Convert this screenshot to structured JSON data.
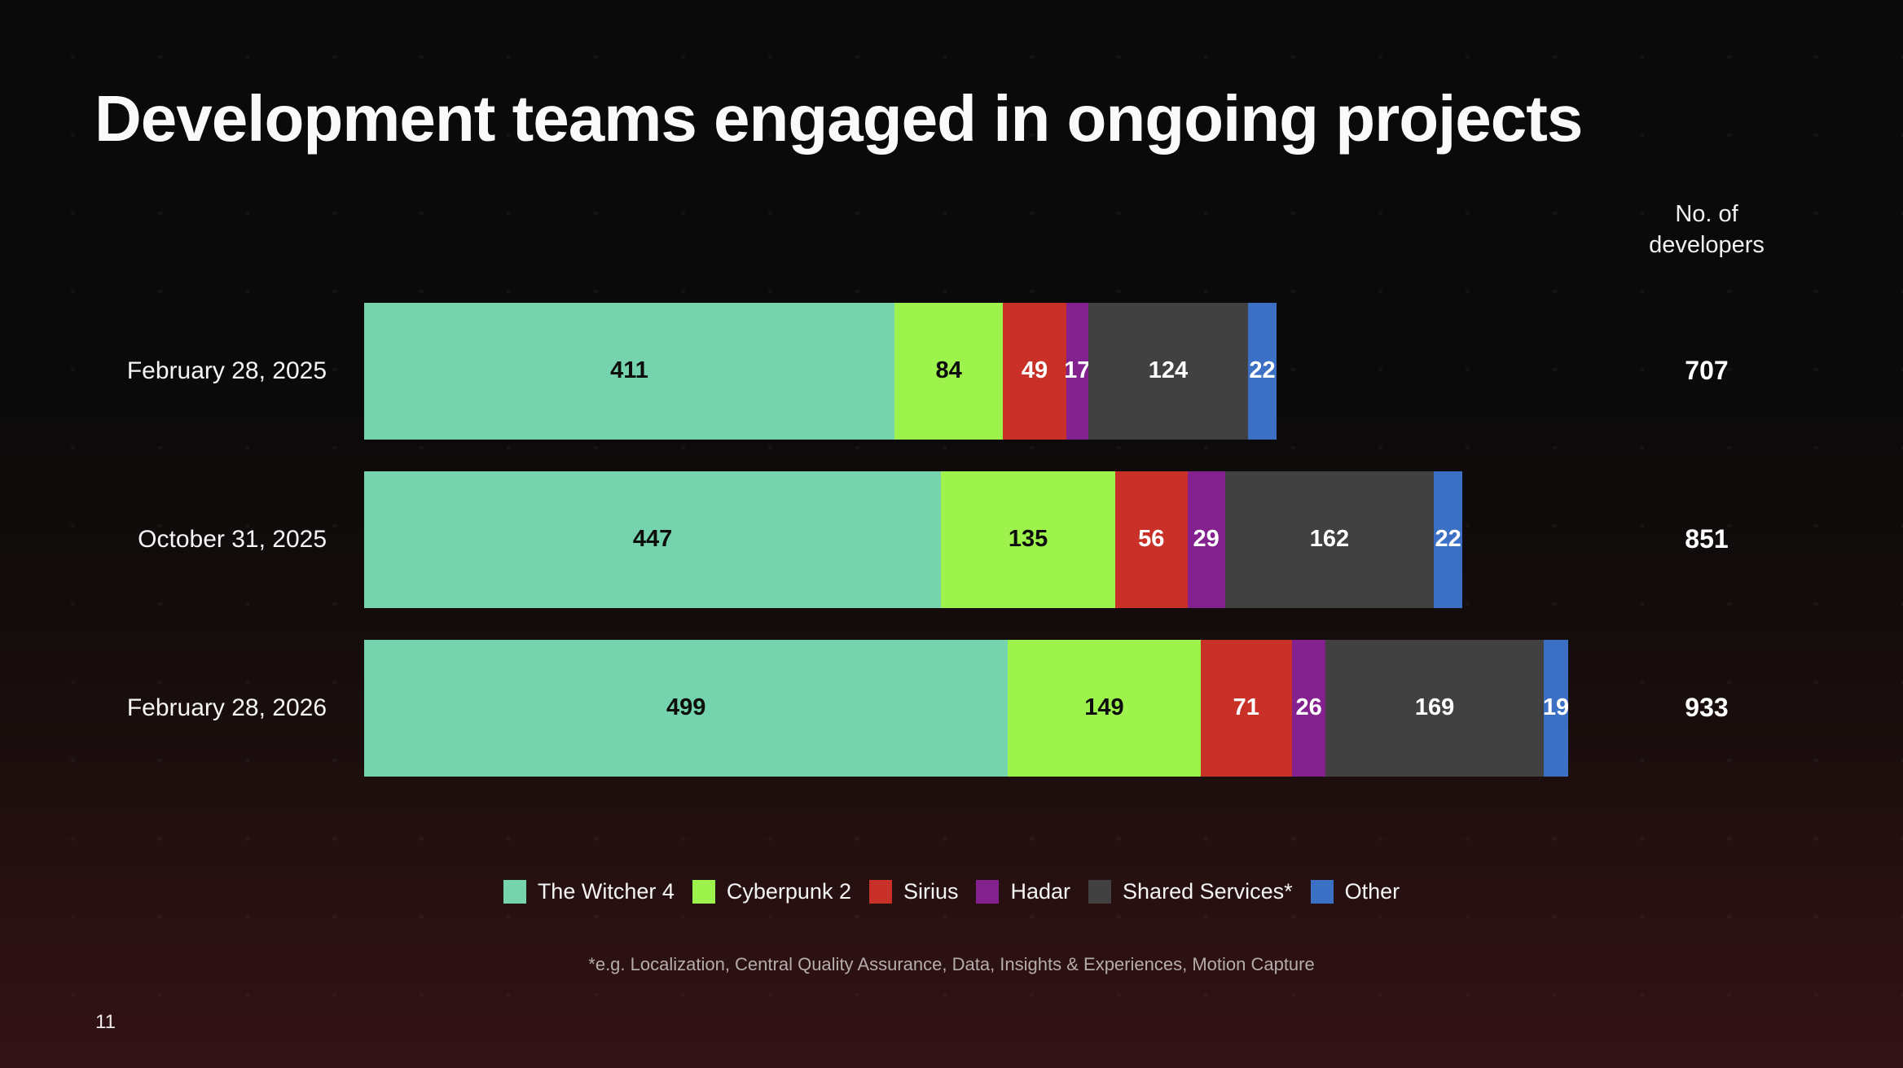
{
  "slide": {
    "title": "Development teams engaged in ongoing projects",
    "page_number": "11",
    "footnote": "*e.g. Localization, Central Quality Assurance, Data, Insights & Experiences, Motion Capture"
  },
  "chart_data": {
    "type": "bar",
    "orientation": "horizontal",
    "stacked": true,
    "title": "Development teams engaged in ongoing projects",
    "value_column_header": "No. of developers",
    "categories": [
      "February 28, 2025",
      "October 31, 2025",
      "February 28, 2026"
    ],
    "series": [
      {
        "name": "The Witcher 4",
        "color": "#75d4ae",
        "label_color": "#0d0d0d",
        "values": [
          411,
          447,
          499
        ]
      },
      {
        "name": "Cyberpunk 2",
        "color": "#9df24c",
        "label_color": "#0d0d0d",
        "values": [
          84,
          135,
          149
        ]
      },
      {
        "name": "Sirius",
        "color": "#c93128",
        "label_color": "#ffffff",
        "values": [
          49,
          56,
          71
        ]
      },
      {
        "name": "Hadar",
        "color": "#83218f",
        "label_color": "#ffffff",
        "values": [
          17,
          29,
          26
        ]
      },
      {
        "name": "Shared Services*",
        "color": "#424142",
        "label_color": "#ffffff",
        "values": [
          124,
          162,
          169
        ]
      },
      {
        "name": "Other",
        "color": "#3b70c4",
        "label_color": "#ffffff",
        "values": [
          22,
          22,
          19
        ]
      }
    ],
    "totals": [
      707,
      851,
      933
    ],
    "xmax": 933,
    "xlabel": "",
    "ylabel": "",
    "grid": false,
    "legend_position": "bottom",
    "background_colors": {
      "top": "#0b0a0a",
      "bottom": "#331215"
    }
  }
}
